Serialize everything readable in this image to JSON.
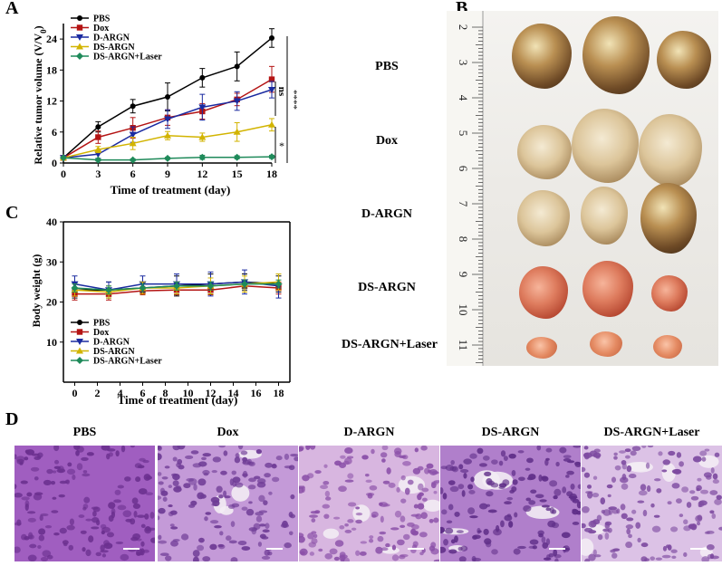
{
  "panels": {
    "a": "A",
    "b": "B",
    "c": "C",
    "d": "D"
  },
  "colors": {
    "PBS": "#000000",
    "Dox": "#b41414",
    "D-ARGN": "#1a2aa0",
    "DS-ARGN": "#d2b400",
    "DS-ARGN+Laser": "#1f8a5a"
  },
  "significance": {
    "ns": "ns",
    "four_star": "****",
    "one_star": "*"
  },
  "chart_data": [
    {
      "id": "tumor-volume",
      "type": "line",
      "title": "",
      "xlabel": "Time of treatment (day)",
      "ylabel": "Relative tumor volume (V/V0)",
      "ylabel_main": "Relative tumor volume (V/V",
      "ylabel_sub": "0",
      "ylabel_tail": ")",
      "x": [
        0,
        3,
        6,
        9,
        12,
        15,
        18
      ],
      "xlim": [
        0,
        18
      ],
      "ylim": [
        0,
        27
      ],
      "yticks": [
        0,
        6,
        12,
        18,
        24
      ],
      "legend_position": "top-left",
      "series": [
        {
          "name": "PBS",
          "values": [
            1,
            7,
            11,
            12.8,
            16.5,
            18.7,
            24.2
          ],
          "errors": [
            0.3,
            1.0,
            1.3,
            2.7,
            1.8,
            2.8,
            1.8
          ]
        },
        {
          "name": "Dox",
          "values": [
            1,
            5,
            6.8,
            8.8,
            10,
            12.3,
            16.2
          ],
          "errors": [
            0.3,
            1.2,
            2.0,
            1.5,
            1.5,
            1.2,
            2.5
          ]
        },
        {
          "name": "D-ARGN",
          "values": [
            1,
            1.7,
            5.5,
            8.5,
            10.8,
            12,
            14.2
          ],
          "errors": [
            0.2,
            0.8,
            1.5,
            1.8,
            2.5,
            1.8,
            1.6
          ]
        },
        {
          "name": "DS-ARGN",
          "values": [
            1,
            2.6,
            3.8,
            5.3,
            5,
            6,
            7.4
          ],
          "errors": [
            0.2,
            0.6,
            1.2,
            0.8,
            0.8,
            1.8,
            1.2
          ]
        },
        {
          "name": "DS-ARGN+Laser",
          "values": [
            1,
            0.6,
            0.6,
            0.9,
            1.1,
            1.1,
            1.2
          ],
          "errors": [
            0.1,
            0.2,
            0.2,
            0.2,
            0.4,
            0.3,
            0.3
          ]
        }
      ]
    },
    {
      "id": "body-weight",
      "type": "line",
      "title": "",
      "xlabel": "Time of treatment (day)",
      "ylabel": "Body weight (g)",
      "x": [
        0,
        3,
        6,
        9,
        12,
        15,
        18
      ],
      "xticks": [
        0,
        2,
        4,
        6,
        8,
        10,
        12,
        14,
        16,
        18
      ],
      "xlim": [
        -1,
        19
      ],
      "ylim": [
        0,
        40
      ],
      "yticks": [
        10,
        20,
        30,
        40
      ],
      "legend_position": "bottom-left",
      "series": [
        {
          "name": "PBS",
          "values": [
            23,
            23,
            23.5,
            24,
            24.5,
            25,
            24.5
          ],
          "errors": [
            2.0,
            2.0,
            1.5,
            2.5,
            2.5,
            2.0,
            2.0
          ]
        },
        {
          "name": "Dox",
          "values": [
            22,
            22,
            22.8,
            23,
            23,
            24,
            23.5
          ],
          "errors": [
            1.5,
            1.5,
            1.0,
            1.2,
            1.2,
            1.5,
            1.5
          ]
        },
        {
          "name": "D-ARGN",
          "values": [
            24.5,
            23,
            24.5,
            24.5,
            24.5,
            25,
            24
          ],
          "errors": [
            2.0,
            2.0,
            2.0,
            2.5,
            3.0,
            3.0,
            3.0
          ]
        },
        {
          "name": "DS-ARGN",
          "values": [
            23,
            22.5,
            23.5,
            23.5,
            24,
            24.5,
            25
          ],
          "errors": [
            1.5,
            1.5,
            1.5,
            1.5,
            2.0,
            2.0,
            2.0
          ]
        },
        {
          "name": "DS-ARGN+Laser",
          "values": [
            23.5,
            23,
            23.5,
            24,
            24,
            24.5,
            24.5
          ],
          "errors": [
            1.0,
            1.0,
            1.0,
            1.0,
            1.0,
            1.0,
            1.0
          ]
        }
      ]
    }
  ],
  "photo": {
    "groups": [
      "PBS",
      "Dox",
      "D-ARGN",
      "DS-ARGN",
      "DS-ARGN+Laser"
    ],
    "ruler_numbers": [
      "2",
      "3",
      "4",
      "5",
      "6",
      "7",
      "8",
      "9",
      "10",
      "11"
    ]
  },
  "histology": {
    "titles": [
      "PBS",
      "Dox",
      "D-ARGN",
      "DS-ARGN",
      "DS-ARGN+Laser"
    ]
  }
}
